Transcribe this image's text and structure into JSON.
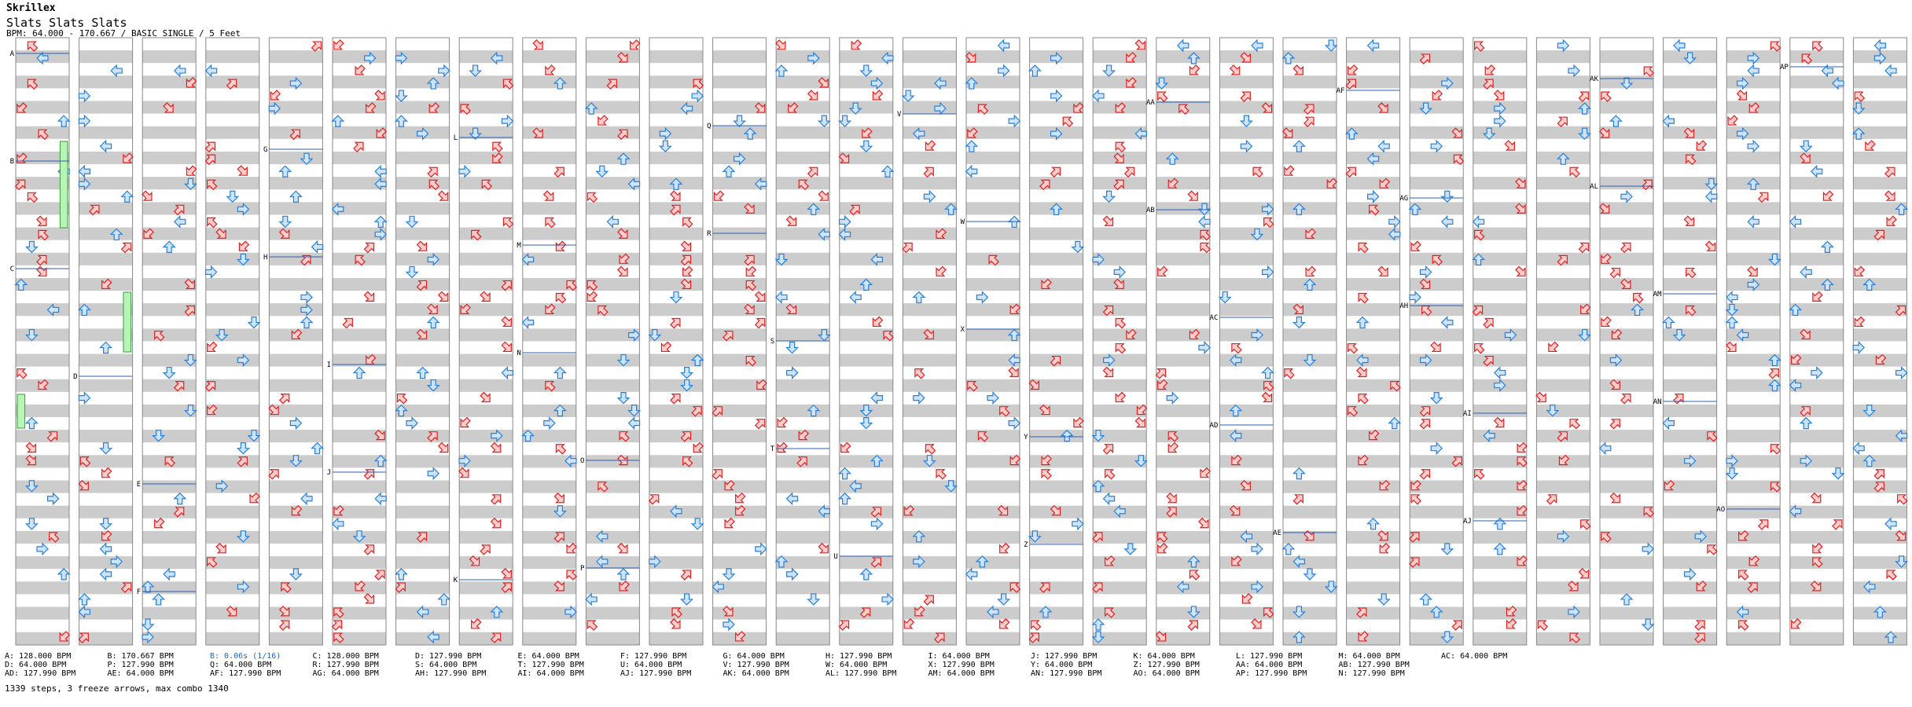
{
  "header": {
    "artist": "Skrillex",
    "title": "Slats Slats Slats",
    "bpm_line": "BPM: 64.000 - 170.667 / BASIC SINGLE / 5 Feet"
  },
  "colors": {
    "red_arrow_fill": "#ffcccc",
    "red_arrow_stroke": "#e02020",
    "blue_arrow_fill": "#cce4ff",
    "blue_arrow_stroke": "#2a7fd4",
    "stripe": "#cccccc",
    "freeze": "#b6f5b6",
    "marker_line": "#2a5fb0"
  },
  "markers": [
    {
      "label": "A",
      "column": 0
    },
    {
      "label": "B",
      "column": 0
    },
    {
      "label": "C",
      "column": 0
    },
    {
      "label": "D",
      "column": 1
    },
    {
      "label": "E",
      "column": 2
    },
    {
      "label": "F",
      "column": 2
    },
    {
      "label": "G",
      "column": 4
    },
    {
      "label": "H",
      "column": 4
    },
    {
      "label": "I",
      "column": 5
    },
    {
      "label": "J",
      "column": 5
    },
    {
      "label": "K",
      "column": 7
    },
    {
      "label": "L",
      "column": 7
    },
    {
      "label": "M",
      "column": 8
    },
    {
      "label": "N",
      "column": 8
    },
    {
      "label": "O",
      "column": 9
    },
    {
      "label": "P",
      "column": 9
    },
    {
      "label": "Q",
      "column": 11
    },
    {
      "label": "R",
      "column": 11
    },
    {
      "label": "S",
      "column": 12
    },
    {
      "label": "T",
      "column": 12
    },
    {
      "label": "U",
      "column": 13
    },
    {
      "label": "V",
      "column": 14
    },
    {
      "label": "W",
      "column": 15
    },
    {
      "label": "X",
      "column": 15
    },
    {
      "label": "Y",
      "column": 16
    },
    {
      "label": "Z",
      "column": 16
    },
    {
      "label": "AA",
      "column": 18
    },
    {
      "label": "AB",
      "column": 18
    },
    {
      "label": "AC",
      "column": 19
    },
    {
      "label": "AD",
      "column": 19
    },
    {
      "label": "AE",
      "column": 20
    },
    {
      "label": "AF",
      "column": 21
    },
    {
      "label": "AG",
      "column": 22
    },
    {
      "label": "AH",
      "column": 22
    },
    {
      "label": "AI",
      "column": 23
    },
    {
      "label": "AJ",
      "column": 23
    },
    {
      "label": "AK",
      "column": 25
    },
    {
      "label": "AL",
      "column": 25
    },
    {
      "label": "AM",
      "column": 26
    },
    {
      "label": "AN",
      "column": 26
    },
    {
      "label": "AO",
      "column": 27
    },
    {
      "label": "AP",
      "column": 28
    }
  ],
  "legend": [
    "A: 128.000 BPM",
    "D: 64.000 BPM",
    "AD: 127.990 BPM",
    "B: 170.667 BPM",
    "P: 127.990 BPM",
    "AE: 64.000 BPM",
    "B: 0.06s (1/16)",
    "Q: 64.000 BPM",
    "AF: 127.990 BPM",
    "C: 128.000 BPM",
    "R: 127.990 BPM",
    "AG: 64.000 BPM",
    "D: 127.990 BPM",
    "S: 64.000 BPM",
    "AH: 127.990 BPM",
    "E: 64.000 BPM",
    "T: 127.990 BPM",
    "AI: 64.000 BPM",
    "F: 127.990 BPM",
    "U: 64.000 BPM",
    "AJ: 127.990 BPM",
    "G: 64.000 BPM",
    "V: 127.990 BPM",
    "AK: 64.000 BPM",
    "H: 127.990 BPM",
    "W: 64.000 BPM",
    "AL: 127.990 BPM",
    "I: 64.000 BPM",
    "X: 127.990 BPM",
    "AM: 64.000 BPM",
    "J: 127.990 BPM",
    "Y: 64.000 BPM",
    "AN: 127.990 BPM",
    "K: 64.000 BPM",
    "Z: 127.990 BPM",
    "AO: 64.000 BPM",
    "L: 127.990 BPM",
    "AA: 64.000 BPM",
    "AP: 127.990 BPM",
    "M: 64.000 BPM",
    "AB: 127.990 BPM",
    "N: 127.990 BPM",
    "AC: 64.000 BPM"
  ],
  "summary": "1339 steps, 3 freeze arrows, max combo 1340"
}
